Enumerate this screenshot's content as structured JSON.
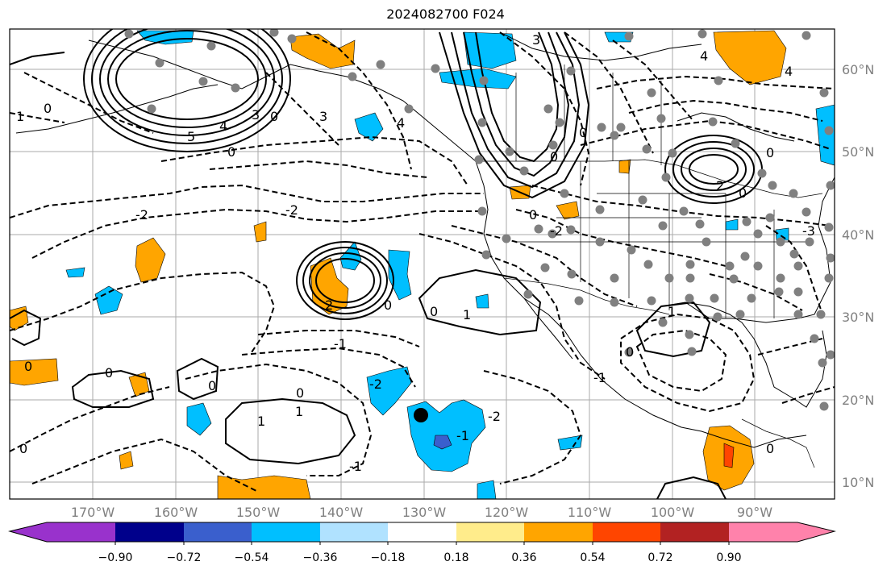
{
  "title": "2024082700 F024",
  "longitude_labels": [
    "170°W",
    "160°W",
    "150°W",
    "140°W",
    "130°W",
    "120°W",
    "110°W",
    "100°W",
    "90°W"
  ],
  "latitude_labels": [
    "60°N",
    "50°N",
    "40°N",
    "30°N",
    "20°N",
    "10°N"
  ],
  "colorbar": {
    "colors": [
      "#9932cc",
      "#00008b",
      "#3a5fcd",
      "#00bfff",
      "#b0e2ff",
      "#ffffff",
      "#ffec8b",
      "#ffa500",
      "#ff4500",
      "#b22222",
      "#ff82ab"
    ],
    "tick_labels": [
      "−0.90",
      "−0.72",
      "−0.54",
      "−0.36",
      "−0.18",
      "0.18",
      "0.36",
      "0.54",
      "0.72",
      "0.90"
    ],
    "extend": "both"
  },
  "contour_labels": [
    "0",
    "1",
    "2",
    "3",
    "4",
    "5",
    "-1",
    "-2",
    "-3"
  ],
  "shading_colors": {
    "negative": "#00bfff",
    "negative_strong": "#3a5fcd",
    "positive": "#ffa500",
    "positive_strong": "#ff4500"
  },
  "station_marker_color": "#808080",
  "center_marker_color": "#000000"
}
